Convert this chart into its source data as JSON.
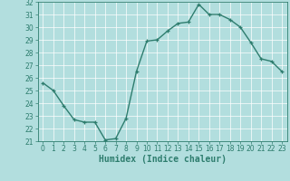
{
  "x": [
    0,
    1,
    2,
    3,
    4,
    5,
    6,
    7,
    8,
    9,
    10,
    11,
    12,
    13,
    14,
    15,
    16,
    17,
    18,
    19,
    20,
    21,
    22,
    23
  ],
  "y": [
    25.6,
    25.0,
    23.8,
    22.7,
    22.5,
    22.5,
    21.1,
    21.2,
    22.8,
    26.5,
    28.9,
    29.0,
    29.7,
    30.3,
    30.4,
    31.8,
    31.0,
    31.0,
    30.6,
    30.0,
    28.8,
    27.5,
    27.3,
    26.5
  ],
  "line_color": "#2e7d6e",
  "marker": "+",
  "marker_color": "#2e7d6e",
  "bg_color": "#b2dede",
  "grid_color": "#c8e8e8",
  "xlabel": "Humidex (Indice chaleur)",
  "ylim": [
    21,
    32
  ],
  "xlim": [
    -0.5,
    23.5
  ],
  "yticks": [
    21,
    22,
    23,
    24,
    25,
    26,
    27,
    28,
    29,
    30,
    31,
    32
  ],
  "xticks": [
    0,
    1,
    2,
    3,
    4,
    5,
    6,
    7,
    8,
    9,
    10,
    11,
    12,
    13,
    14,
    15,
    16,
    17,
    18,
    19,
    20,
    21,
    22,
    23
  ],
  "tick_color": "#2e7d6e",
  "tick_fontsize": 5.5,
  "xlabel_fontsize": 7,
  "linewidth": 1.0
}
